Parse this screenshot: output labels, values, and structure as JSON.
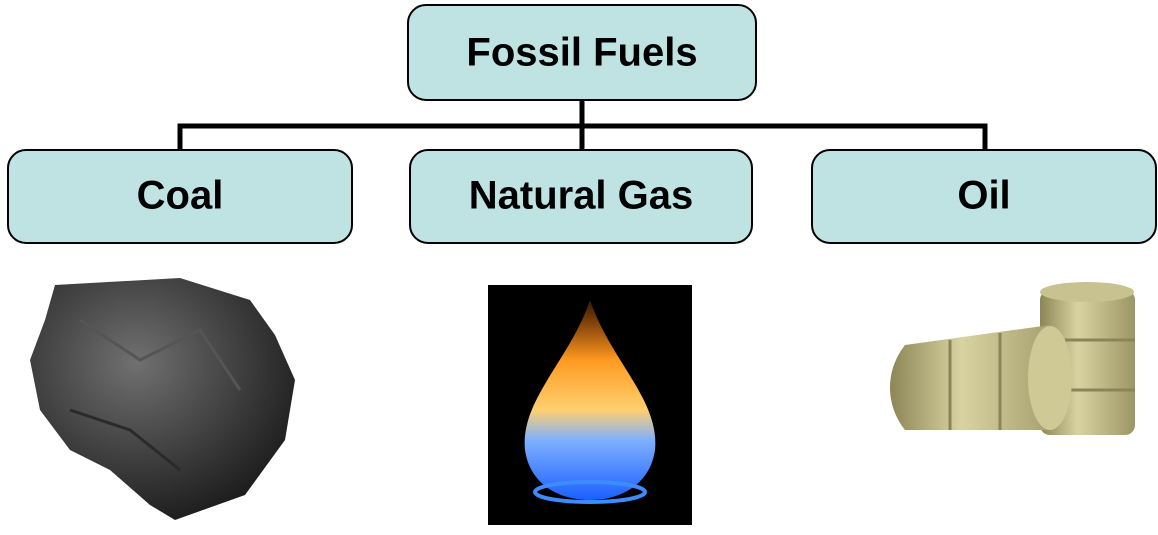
{
  "root": {
    "label": "Fossil Fuels"
  },
  "nodes": [
    {
      "label": "Coal"
    },
    {
      "label": "Natural Gas"
    },
    {
      "label": "Oil"
    }
  ]
}
